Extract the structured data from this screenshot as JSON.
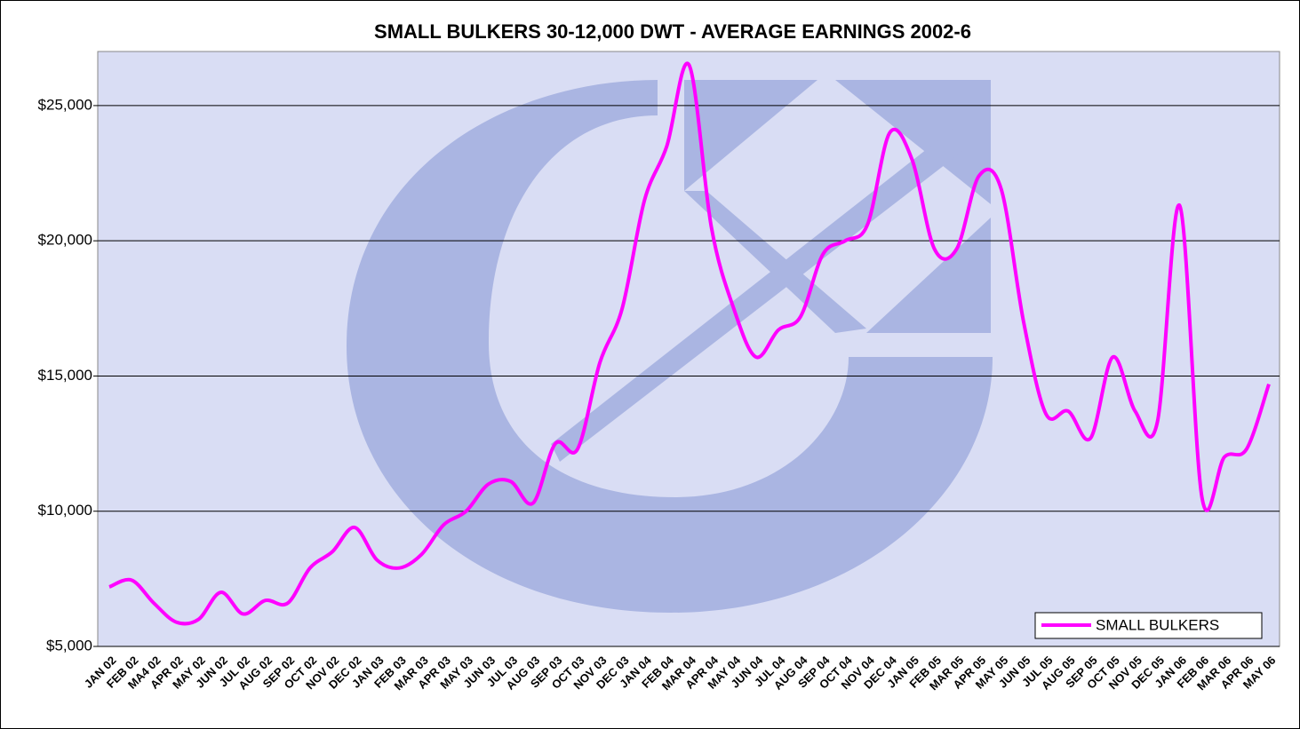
{
  "chart_data": {
    "type": "line",
    "title": "SMALL BULKERS 30-12,000 DWT - AVERAGE EARNINGS 2002-6",
    "categories": [
      "JAN 02",
      "FEB 02",
      "MA4 02",
      "APR 02",
      "MAY 02",
      "JUN 02",
      "JUL 02",
      "AUG 02",
      "SEP 02",
      "OCT 02",
      "NOV 02",
      "DEC 02",
      "JAN 03",
      "FEB 03",
      "MAR 03",
      "APR 03",
      "MAY 03",
      "JUN 03",
      "JUL 03",
      "AUG 03",
      "SEP 03",
      "OCT 03",
      "NOV 03",
      "DEC 03",
      "JAN 04",
      "FEB 04",
      "MAR 04",
      "APR 04",
      "MAY 04",
      "JUN 04",
      "JUL 04",
      "AUG 04",
      "SEP 04",
      "OCT 04",
      "NOV 04",
      "DEC 04",
      "JAN 05",
      "FEB 05",
      "MAR 05",
      "APR 05",
      "MAY 05",
      "JUN 05",
      "JUL 05",
      "AUG 05",
      "SEP 05",
      "OCT 05",
      "NOV 05",
      "DEC 05",
      "JAN 06",
      "FEB 06",
      "MAR 06",
      "APR 06",
      "MAY 06"
    ],
    "series": [
      {
        "name": "SMALL BULKERS",
        "color": "#ff00ff",
        "values": [
          7200,
          7450,
          6600,
          5900,
          6000,
          7000,
          6200,
          6700,
          6600,
          7900,
          8500,
          9400,
          8200,
          7900,
          8400,
          9500,
          10000,
          11000,
          11100,
          10300,
          12500,
          12300,
          15500,
          17500,
          21500,
          23500,
          26500,
          20500,
          17500,
          15700,
          16700,
          17200,
          19500,
          20000,
          20600,
          24000,
          23000,
          19700,
          19700,
          22400,
          21900,
          17000,
          13600,
          13700,
          12700,
          15700,
          13700,
          13300,
          21300,
          10500,
          12000,
          12300,
          14700
        ]
      }
    ],
    "ylim": [
      5000,
      27000
    ],
    "yticks": [
      {
        "value": 5000,
        "label": "$5,000"
      },
      {
        "value": 10000,
        "label": "$10,000"
      },
      {
        "value": 15000,
        "label": "$15,000"
      },
      {
        "value": 20000,
        "label": "$20,000"
      },
      {
        "value": 25000,
        "label": "$25,000"
      }
    ],
    "grid": true,
    "legend": "lower right"
  }
}
